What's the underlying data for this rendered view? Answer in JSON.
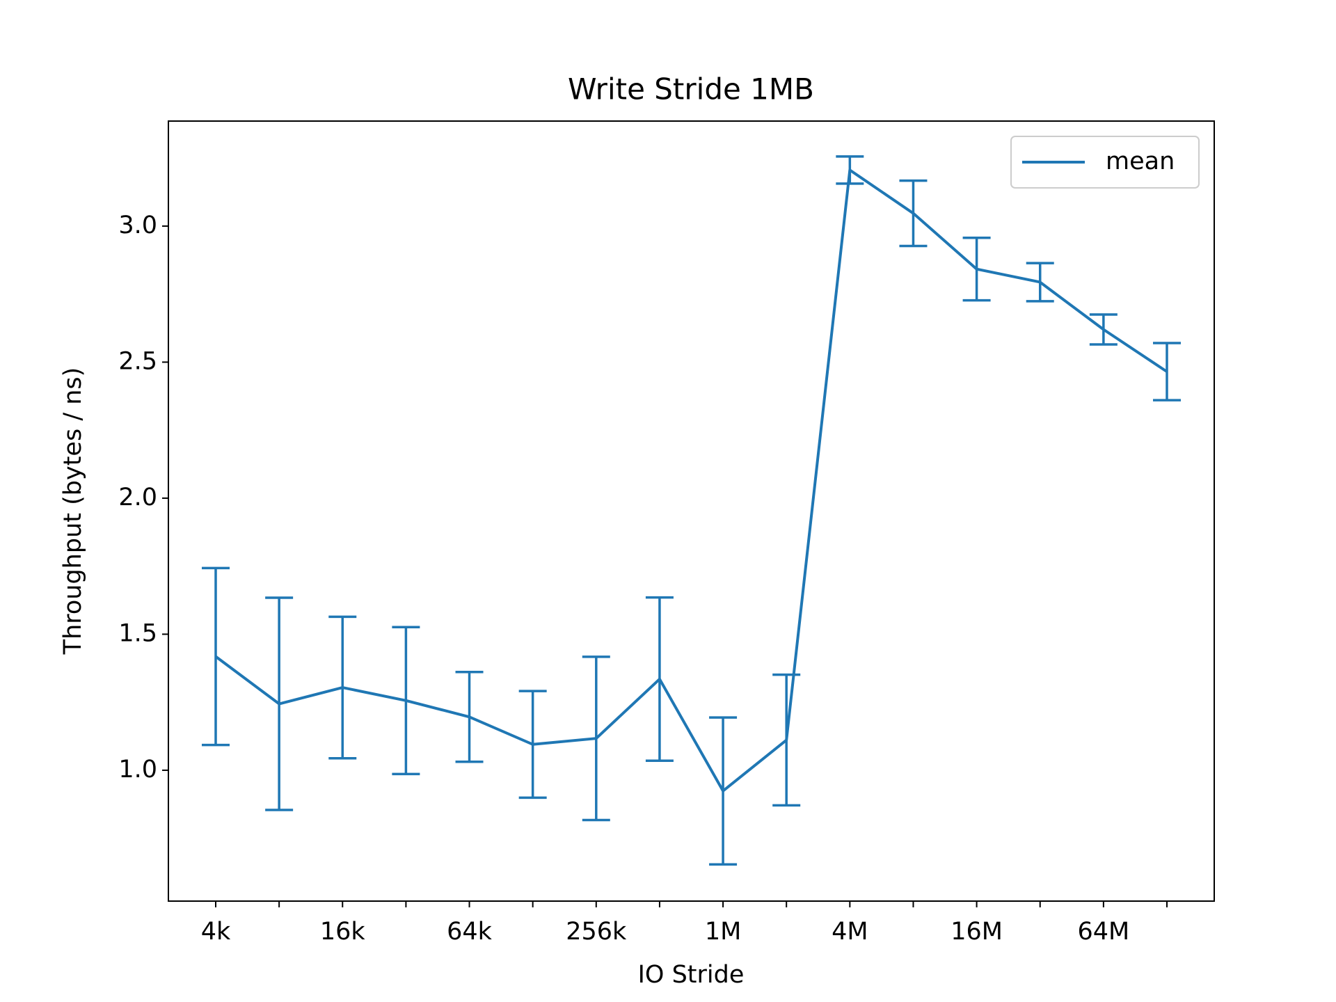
{
  "chart_data": {
    "type": "line",
    "title": "Write Stride 1MB",
    "x_label": "IO Stride",
    "y_label": "Throughput (bytes / ns)",
    "categories": [
      "4k",
      null,
      "16k",
      null,
      "64k",
      null,
      "256k",
      null,
      "1M",
      null,
      "4M",
      null,
      "16M",
      null,
      "64M",
      null
    ],
    "series": [
      {
        "name": "mean",
        "color": "#1f77b4",
        "values": [
          1.418,
          1.244,
          1.304,
          1.256,
          1.196,
          1.095,
          1.117,
          1.335,
          0.924,
          1.111,
          3.206,
          3.047,
          2.842,
          2.794,
          2.62,
          2.465
        ],
        "errors": [
          0.325,
          0.39,
          0.26,
          0.27,
          0.165,
          0.196,
          0.3,
          0.3,
          0.27,
          0.24,
          0.05,
          0.12,
          0.115,
          0.07,
          0.055,
          0.105
        ]
      }
    ],
    "ylim": [
      0.519,
      3.386
    ],
    "yticks": [
      {
        "value": 1,
        "label": "1.0"
      },
      {
        "value": 1.5,
        "label": "1.5"
      },
      {
        "value": 2,
        "label": "2.0"
      },
      {
        "value": 2.5,
        "label": "2.5"
      },
      {
        "value": 3,
        "label": "3.0"
      }
    ],
    "legend": "upper right",
    "grid": false
  }
}
